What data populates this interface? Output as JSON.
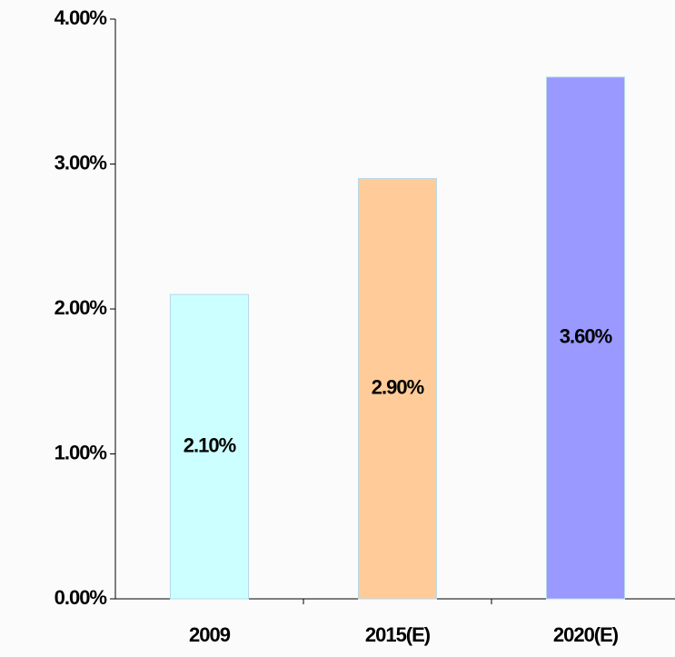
{
  "chart_data": {
    "type": "bar",
    "categories": [
      "2009",
      "2015(E)",
      "2020(E)"
    ],
    "values": [
      2.1,
      2.9,
      3.6
    ],
    "value_labels": [
      "2.10%",
      "2.90%",
      "3.60%"
    ],
    "colors": [
      "#ccffff",
      "#ffcc99",
      "#9999ff"
    ],
    "ylim": [
      0,
      4
    ],
    "yticks": [
      {
        "value": 0,
        "label": "0.00%"
      },
      {
        "value": 1,
        "label": "1.00%"
      },
      {
        "value": 2,
        "label": "2.00%"
      },
      {
        "value": 3,
        "label": "3.00%"
      },
      {
        "value": 4,
        "label": "4.00%"
      }
    ],
    "grid": false
  }
}
